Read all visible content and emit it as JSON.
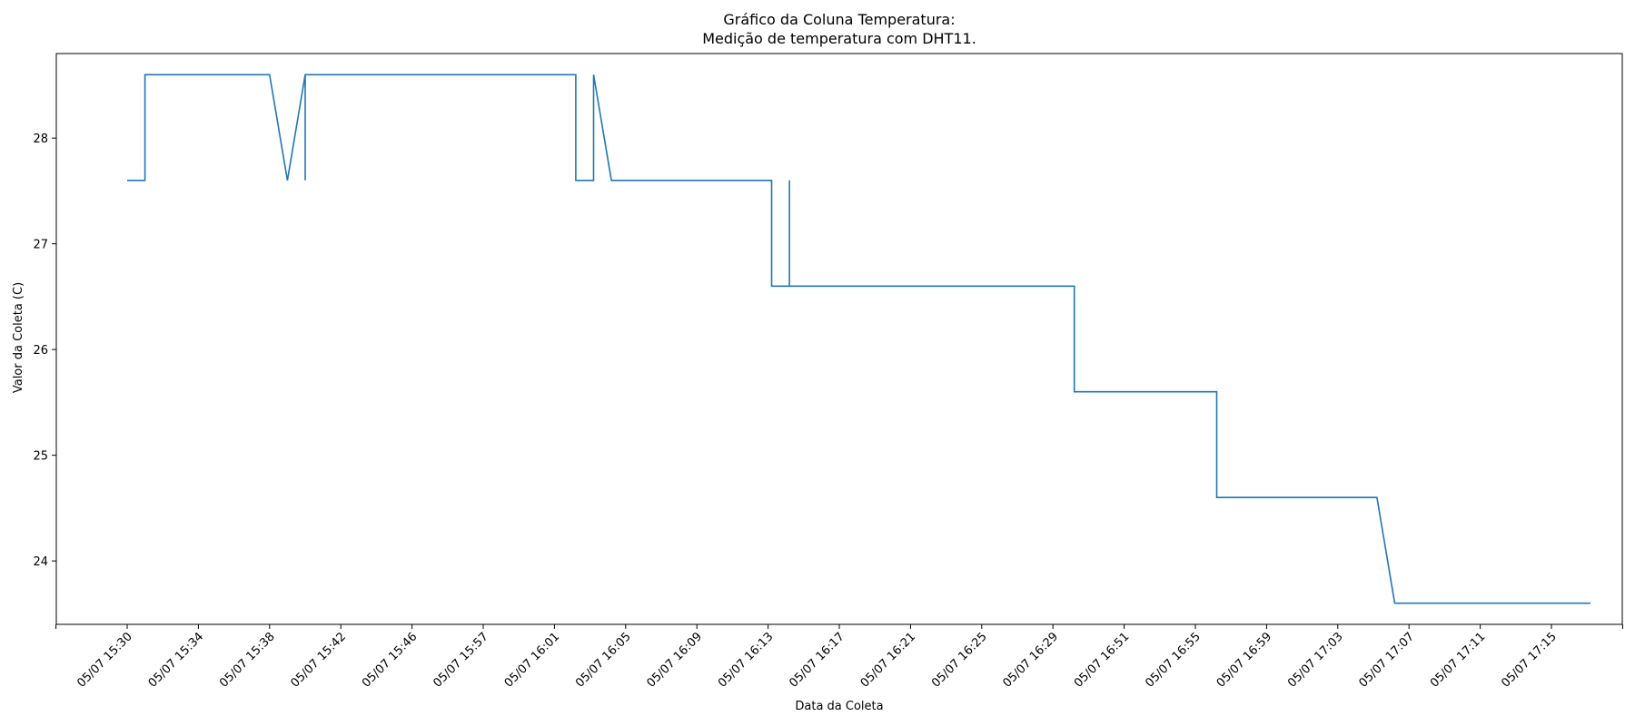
{
  "chart_data": {
    "type": "line",
    "title_line1": "Gráfico da Coluna Temperatura:",
    "title_line2": "Medição de temperatura com DHT11.",
    "xlabel": "Data da Coleta",
    "ylabel": "Valor da Coleta (C)",
    "x_axis": "categorical",
    "categories": [
      "05/07 15:30",
      "05/07 15:34",
      "05/07 15:38",
      "05/07 15:42",
      "05/07 15:46",
      "05/07 15:57",
      "05/07 16:01",
      "05/07 16:05",
      "05/07 16:09",
      "05/07 16:13",
      "05/07 16:17",
      "05/07 16:21",
      "05/07 16:25",
      "05/07 16:29",
      "05/07 16:51",
      "05/07 16:55",
      "05/07 16:59",
      "05/07 17:03",
      "05/07 17:07",
      "05/07 17:11",
      "05/07 17:15"
    ],
    "ylim": [
      23.4,
      28.8
    ],
    "yticks": [
      24,
      25,
      26,
      27,
      28
    ],
    "grid": false,
    "line_color": "#1f77b4",
    "series": [
      {
        "x": [
          0,
          0.25,
          0.25,
          2.0,
          2.25,
          2.5,
          2.5,
          2.5,
          6.3,
          6.3,
          6.55,
          6.55,
          6.8,
          9.05,
          9.05,
          9.3,
          9.3,
          9.3,
          13.3,
          13.3,
          15.3,
          15.3,
          17.55,
          17.8,
          20.55
        ],
        "y": [
          27.6,
          27.6,
          28.6,
          28.6,
          27.6,
          28.6,
          27.6,
          28.6,
          28.6,
          27.6,
          27.6,
          28.6,
          27.6,
          27.6,
          26.6,
          26.6,
          27.6,
          26.6,
          26.6,
          25.6,
          25.6,
          24.6,
          24.6,
          23.6,
          23.6
        ]
      }
    ]
  }
}
